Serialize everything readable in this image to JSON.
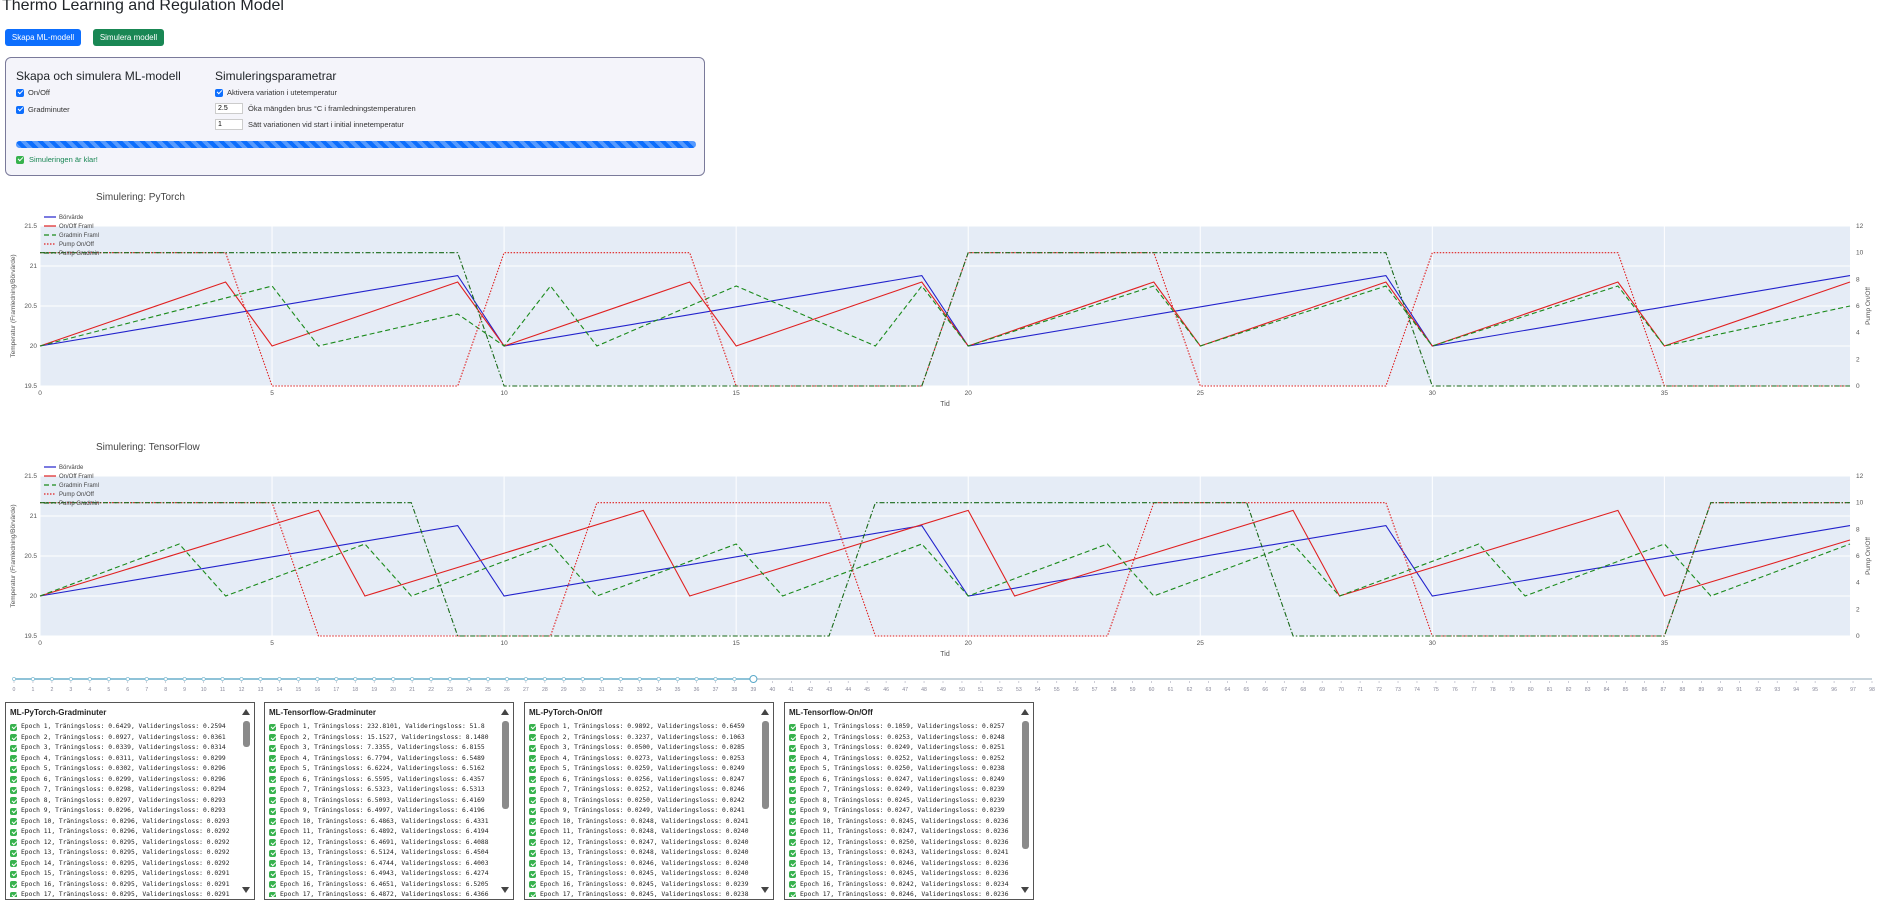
{
  "app": {
    "title": "Thermo Learning and Regulation Model"
  },
  "toolbar": {
    "create_label": "Skapa ML-modell",
    "simulate_label": "Simulera modell"
  },
  "colors": {
    "primary": "#0d6efd",
    "success": "#198754",
    "bor": "#2222cc",
    "onoff": "#e02020",
    "grad": "#1a8a1a",
    "pump_onoff": "#e02020",
    "pump_grad": "#1a6a1a",
    "plot_bg": "#e5ecf6"
  },
  "panel": {
    "create_title": "Skapa och simulera ML-modell",
    "opt_onoff": "On/Off",
    "opt_grad": "Gradminuter",
    "sim_title": "Simuleringsparametrar",
    "variation_label": "Aktivera variation i utetemperatur",
    "noise_value": "2.5",
    "noise_label": "Öka mängden brus °C i framledningstemperaturen",
    "start_value": "1",
    "start_label": "Sätt variationen vid start i initial innetemperatur",
    "status": "Simuleringen är klar!"
  },
  "charts": [
    {
      "title": "Simulering: PyTorch",
      "xlabel": "Tid",
      "ylabel": "Temperatur (Framledning/Börvärde)",
      "y2label": "Pump On/Off",
      "legend": [
        "Börvärde",
        "On/Off Framl",
        "Gradmin Framl",
        "Pump On/Off",
        "Pump Gradmin"
      ],
      "xticks": [
        "0",
        "5",
        "10",
        "15",
        "20",
        "25",
        "30",
        "35"
      ],
      "yticks": [
        "19.5",
        "20",
        "20.5",
        "21",
        "21.5"
      ],
      "y2ticks": [
        "0",
        "2",
        "4",
        "6",
        "8",
        "10",
        "12"
      ]
    },
    {
      "title": "Simulering: TensorFlow",
      "xlabel": "Tid",
      "ylabel": "Temperatur (Framledning/Börvärde)",
      "y2label": "Pump On/Off",
      "legend": [
        "Börvärde",
        "On/Off Framl",
        "Gradmin Framl",
        "Pump On/Off",
        "Pump Gradmin"
      ],
      "xticks": [
        "0",
        "5",
        "10",
        "15",
        "20",
        "25",
        "30",
        "35"
      ],
      "yticks": [
        "19.5",
        "20",
        "20.5",
        "21",
        "21.5"
      ],
      "y2ticks": [
        "0",
        "2",
        "4",
        "6",
        "8",
        "10",
        "12"
      ]
    }
  ],
  "chart_data": [
    {
      "type": "line",
      "title": "Simulering: PyTorch",
      "xlabel": "Tid",
      "ylabel": "Temperatur (Framledning/Börvärde)",
      "y2label": "Pump On/Off",
      "xlim": [
        0,
        39
      ],
      "ylim": [
        19.5,
        21.5
      ],
      "y2lim": [
        0,
        12
      ],
      "legend_position": "top-left",
      "series": [
        {
          "name": "Börvärde",
          "axis": "y",
          "x": [
            0,
            9,
            10,
            19,
            20,
            29,
            30,
            39
          ],
          "y": [
            20,
            20.88,
            20,
            20.88,
            20,
            20.88,
            20,
            20.88
          ]
        },
        {
          "name": "On/Off Framl",
          "axis": "y",
          "x": [
            0,
            4,
            5,
            9,
            10,
            14,
            15,
            19,
            20,
            24,
            25,
            29,
            30,
            34,
            35,
            39
          ],
          "y": [
            20,
            20.8,
            20,
            20.8,
            20,
            20.8,
            20,
            20.8,
            20,
            20.8,
            20,
            20.8,
            20,
            20.8,
            20,
            20.8
          ]
        },
        {
          "name": "Gradmin Framl",
          "axis": "y",
          "x": [
            0,
            5,
            6,
            9,
            10,
            11,
            12,
            15,
            18,
            19,
            20,
            24,
            25,
            29,
            30,
            34,
            35,
            39
          ],
          "y": [
            20,
            20.75,
            20,
            20.4,
            20,
            20.75,
            20,
            20.75,
            20,
            20.75,
            20,
            20.75,
            20,
            20.75,
            20,
            20.75,
            20,
            20.5
          ]
        },
        {
          "name": "Pump On/Off",
          "axis": "y2",
          "x": [
            0,
            4,
            5,
            9,
            10,
            14,
            15,
            19,
            20,
            24,
            25,
            29,
            30,
            34,
            35,
            39
          ],
          "y": [
            10,
            10,
            0,
            0,
            10,
            10,
            0,
            0,
            10,
            10,
            0,
            0,
            10,
            10,
            0,
            0
          ]
        },
        {
          "name": "Pump Gradmin",
          "axis": "y2",
          "x": [
            0,
            9,
            10,
            19,
            20,
            29,
            30,
            39
          ],
          "y": [
            10,
            10,
            0,
            0,
            10,
            10,
            0,
            0
          ]
        }
      ]
    },
    {
      "type": "line",
      "title": "Simulering: TensorFlow",
      "xlabel": "Tid",
      "ylabel": "Temperatur (Framledning/Börvärde)",
      "y2label": "Pump On/Off",
      "xlim": [
        0,
        39
      ],
      "ylim": [
        19.5,
        21.5
      ],
      "y2lim": [
        0,
        12
      ],
      "legend_position": "top-left",
      "series": [
        {
          "name": "Börvärde",
          "axis": "y",
          "x": [
            0,
            9,
            10,
            19,
            20,
            29,
            30,
            39
          ],
          "y": [
            20,
            20.88,
            20,
            20.88,
            20,
            20.88,
            20,
            20.88
          ]
        },
        {
          "name": "On/Off Framl",
          "axis": "y",
          "x": [
            0,
            6,
            7,
            13,
            14,
            20,
            21,
            27,
            28,
            34,
            35,
            39
          ],
          "y": [
            20,
            21.07,
            20,
            21.07,
            20,
            21.07,
            20,
            21.07,
            20,
            21.07,
            20,
            20.7
          ]
        },
        {
          "name": "Gradmin Framl",
          "axis": "y",
          "x": [
            0,
            3,
            4,
            7,
            8,
            11,
            12,
            15,
            16,
            19,
            20,
            23,
            24,
            27,
            28,
            31,
            32,
            35,
            36,
            39
          ],
          "y": [
            20,
            20.65,
            20,
            20.65,
            20,
            20.65,
            20,
            20.65,
            20,
            20.65,
            20,
            20.65,
            20,
            20.65,
            20,
            20.65,
            20,
            20.65,
            20,
            20.65
          ]
        },
        {
          "name": "Pump On/Off",
          "axis": "y2",
          "x": [
            0,
            5,
            6,
            11,
            12,
            17,
            18,
            23,
            24,
            29,
            30,
            35,
            36,
            39
          ],
          "y": [
            10,
            10,
            0,
            0,
            10,
            10,
            0,
            0,
            10,
            10,
            0,
            0,
            10,
            10
          ]
        },
        {
          "name": "Pump Gradmin",
          "axis": "y2",
          "x": [
            0,
            8,
            9,
            17,
            18,
            26,
            27,
            35,
            36,
            39
          ],
          "y": [
            10,
            10,
            0,
            0,
            10,
            10,
            0,
            0,
            10,
            10
          ]
        }
      ]
    }
  ],
  "slider": {
    "min": 0,
    "max": 98,
    "value": 39
  },
  "logs": [
    {
      "title": "ML-PyTorch-Gradminuter",
      "lines": [
        "Epoch 1, Träningsloss: 0.6429, Valideringsloss: 0.2594",
        "Epoch 2, Träningsloss: 0.0927, Valideringsloss: 0.0361",
        "Epoch 3, Träningsloss: 0.0339, Valideringsloss: 0.0314",
        "Epoch 4, Träningsloss: 0.0311, Valideringsloss: 0.0299",
        "Epoch 5, Träningsloss: 0.0302, Valideringsloss: 0.0296",
        "Epoch 6, Träningsloss: 0.0299, Valideringsloss: 0.0296",
        "Epoch 7, Träningsloss: 0.0298, Valideringsloss: 0.0294",
        "Epoch 8, Träningsloss: 0.0297, Valideringsloss: 0.0293",
        "Epoch 9, Träningsloss: 0.0296, Valideringsloss: 0.0293",
        "Epoch 10, Träningsloss: 0.0296, Valideringsloss: 0.0293",
        "Epoch 11, Träningsloss: 0.0296, Valideringsloss: 0.0292",
        "Epoch 12, Träningsloss: 0.0295, Valideringsloss: 0.0292",
        "Epoch 13, Träningsloss: 0.0295, Valideringsloss: 0.0292",
        "Epoch 14, Träningsloss: 0.0295, Valideringsloss: 0.0292",
        "Epoch 15, Träningsloss: 0.0295, Valideringsloss: 0.0291",
        "Epoch 16, Träningsloss: 0.0295, Valideringsloss: 0.0291",
        "Epoch 17, Träningsloss: 0.0295, Valideringsloss: 0.0291"
      ]
    },
    {
      "title": "ML-Tensorflow-Gradminuter",
      "lines": [
        "Epoch 1, Träningsloss: 232.8101, Valideringsloss: 51.8",
        "Epoch 2, Träningsloss: 15.1527, Valideringsloss: 8.1480",
        "Epoch 3, Träningsloss: 7.3355, Valideringsloss: 6.8155",
        "Epoch 4, Träningsloss: 6.7794, Valideringsloss: 6.5489",
        "Epoch 5, Träningsloss: 6.6224, Valideringsloss: 6.5162",
        "Epoch 6, Träningsloss: 6.5595, Valideringsloss: 6.4357",
        "Epoch 7, Träningsloss: 6.5323, Valideringsloss: 6.5313",
        "Epoch 8, Träningsloss: 6.5093, Valideringsloss: 6.4169",
        "Epoch 9, Träningsloss: 6.4997, Valideringsloss: 6.4196",
        "Epoch 10, Träningsloss: 6.4863, Valideringsloss: 6.4331",
        "Epoch 11, Träningsloss: 6.4892, Valideringsloss: 6.4194",
        "Epoch 12, Träningsloss: 6.4691, Valideringsloss: 6.4088",
        "Epoch 13, Träningsloss: 6.5124, Valideringsloss: 6.4504",
        "Epoch 14, Träningsloss: 6.4744, Valideringsloss: 6.4003",
        "Epoch 15, Träningsloss: 6.4943, Valideringsloss: 6.4274",
        "Epoch 16, Träningsloss: 6.4651, Valideringsloss: 6.5205",
        "Epoch 17, Träningsloss: 6.4872, Valideringsloss: 6.4366"
      ]
    },
    {
      "title": "ML-PyTorch-On/Off",
      "lines": [
        "Epoch 1, Träningsloss: 0.9892, Valideringsloss: 0.6459",
        "Epoch 2, Träningsloss: 0.3237, Valideringsloss: 0.1063",
        "Epoch 3, Träningsloss: 0.0500, Valideringsloss: 0.0285",
        "Epoch 4, Träningsloss: 0.0273, Valideringsloss: 0.0253",
        "Epoch 5, Träningsloss: 0.0259, Valideringsloss: 0.0249",
        "Epoch 6, Träningsloss: 0.0256, Valideringsloss: 0.0247",
        "Epoch 7, Träningsloss: 0.0252, Valideringsloss: 0.0246",
        "Epoch 8, Träningsloss: 0.0250, Valideringsloss: 0.0242",
        "Epoch 9, Träningsloss: 0.0249, Valideringsloss: 0.0241",
        "Epoch 10, Träningsloss: 0.0248, Valideringsloss: 0.0241",
        "Epoch 11, Träningsloss: 0.0248, Valideringsloss: 0.0240",
        "Epoch 12, Träningsloss: 0.0247, Valideringsloss: 0.0240",
        "Epoch 13, Träningsloss: 0.0248, Valideringsloss: 0.0240",
        "Epoch 14, Träningsloss: 0.0246, Valideringsloss: 0.0240",
        "Epoch 15, Träningsloss: 0.0245, Valideringsloss: 0.0240",
        "Epoch 16, Träningsloss: 0.0245, Valideringsloss: 0.0239",
        "Epoch 17, Träningsloss: 0.0245, Valideringsloss: 0.0238"
      ]
    },
    {
      "title": "ML-Tensorflow-On/Off",
      "lines": [
        "Epoch 1, Träningsloss: 0.1059, Valideringsloss: 0.0257",
        "Epoch 2, Träningsloss: 0.0253, Valideringsloss: 0.0248",
        "Epoch 3, Träningsloss: 0.0249, Valideringsloss: 0.0251",
        "Epoch 4, Träningsloss: 0.0252, Valideringsloss: 0.0252",
        "Epoch 5, Träningsloss: 0.0250, Valideringsloss: 0.0238",
        "Epoch 6, Träningsloss: 0.0247, Valideringsloss: 0.0249",
        "Epoch 7, Träningsloss: 0.0249, Valideringsloss: 0.0239",
        "Epoch 8, Träningsloss: 0.0245, Valideringsloss: 0.0239",
        "Epoch 9, Träningsloss: 0.0247, Valideringsloss: 0.0239",
        "Epoch 10, Träningsloss: 0.0245, Valideringsloss: 0.0236",
        "Epoch 11, Träningsloss: 0.0247, Valideringsloss: 0.0236",
        "Epoch 12, Träningsloss: 0.0250, Valideringsloss: 0.0236",
        "Epoch 13, Träningsloss: 0.0243, Valideringsloss: 0.0241",
        "Epoch 14, Träningsloss: 0.0246, Valideringsloss: 0.0236",
        "Epoch 15, Träningsloss: 0.0245, Valideringsloss: 0.0236",
        "Epoch 16, Träningsloss: 0.0242, Valideringsloss: 0.0234",
        "Epoch 17, Träningsloss: 0.0246, Valideringsloss: 0.0236"
      ]
    }
  ]
}
